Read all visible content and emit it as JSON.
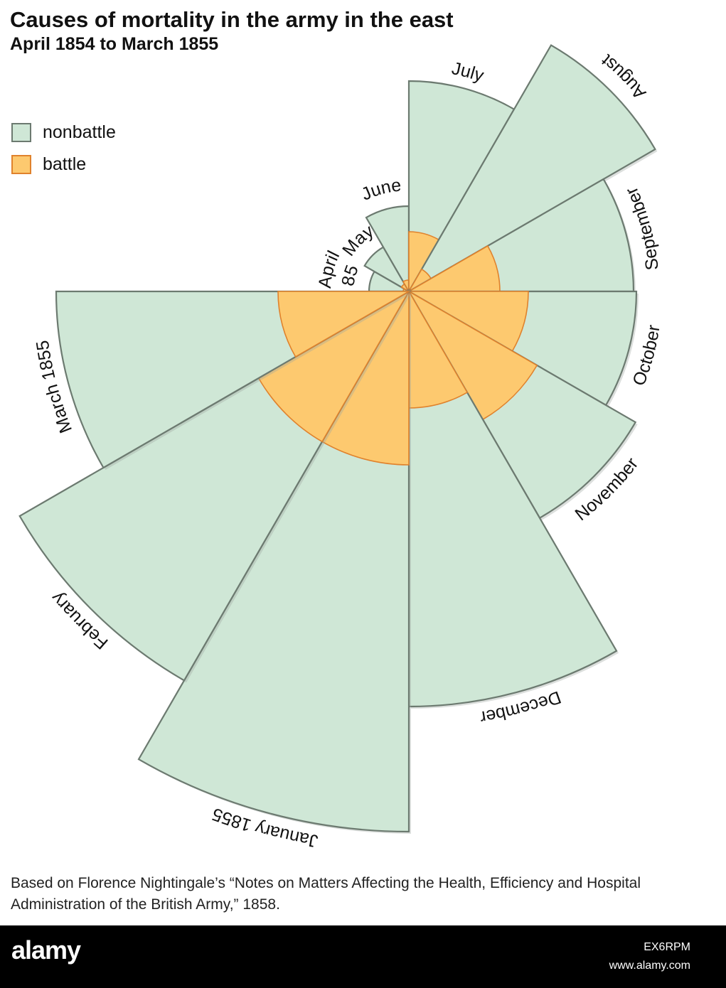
{
  "title": "Causes of mortality in the army in the east",
  "subtitle": "April 1854 to March 1855",
  "legend": [
    {
      "label": "nonbattle",
      "color": "#cfe7d6"
    },
    {
      "label": "battle",
      "color": "#fdc96f"
    }
  ],
  "colors": {
    "nonbattle": "#cfe7d6",
    "battle": "#fdc96f",
    "battle_stroke": "#e0822c",
    "outline": "#6c7a70"
  },
  "chart_data": {
    "type": "polar-area",
    "series_names": [
      "nonbattle",
      "battle"
    ],
    "months": [
      {
        "label": "April\n1854",
        "nonbattle": 0.14,
        "battle": 0.02
      },
      {
        "label": "May",
        "nonbattle": 0.18,
        "battle": 0.03
      },
      {
        "label": "June",
        "nonbattle": 0.3,
        "battle": 0.04
      },
      {
        "label": "July",
        "nonbattle": 0.74,
        "battle": 0.21
      },
      {
        "label": "August",
        "nonbattle": 1.0,
        "battle": 0.09
      },
      {
        "label": "September",
        "nonbattle": 0.79,
        "battle": 0.32
      },
      {
        "label": "October",
        "nonbattle": 0.8,
        "battle": 0.42
      },
      {
        "label": "November",
        "nonbattle": 0.92,
        "battle": 0.52
      },
      {
        "label": "December",
        "nonbattle": 1.46,
        "battle": 0.41
      },
      {
        "label": "January 1855",
        "nonbattle": 1.9,
        "battle": 0.61
      },
      {
        "label": "February",
        "nonbattle": 1.58,
        "battle": 0.61
      },
      {
        "label": "March 1855",
        "nonbattle": 1.24,
        "battle": 0.46
      }
    ]
  },
  "source": "Based on Florence Nightingale’s “Notes on Matters Affecting the Health, Efficiency and Hospital Administration of the British Army,” 1858.",
  "footer": {
    "brand": "alamy",
    "image_id": "EX6RPM",
    "site": "www.alamy.com"
  }
}
